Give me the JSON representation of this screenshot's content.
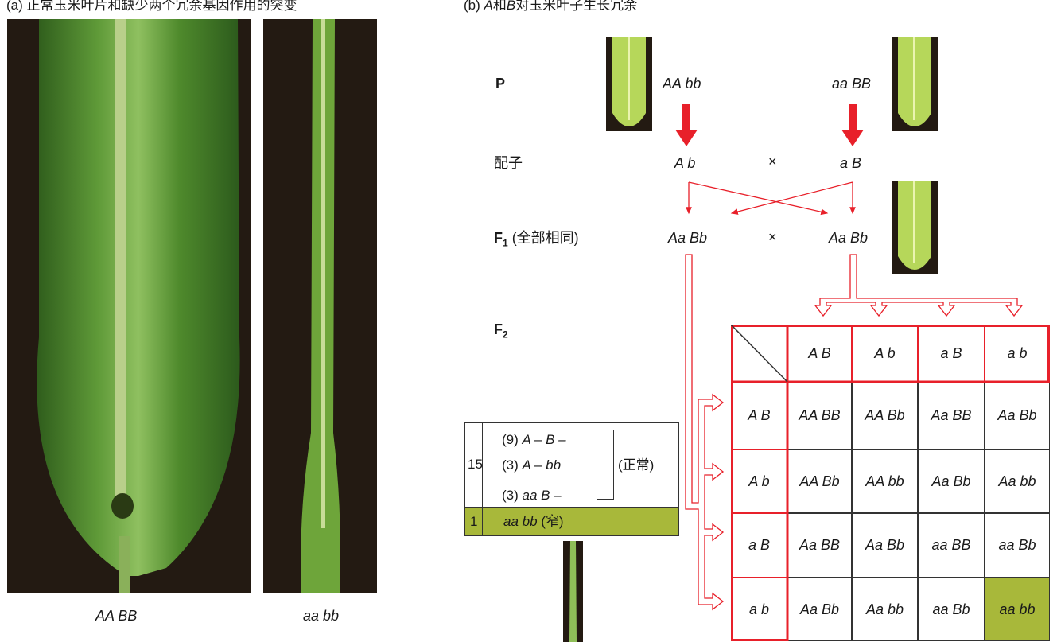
{
  "panel_a": {
    "caption": "(a) 正常玉米叶片和缺少两个冗余基因作用的突变",
    "left_label": "AA BB",
    "right_label": "aa bb"
  },
  "panel_b": {
    "caption_prefix": "(b) ",
    "caption_italic": "A",
    "caption_mid": "和",
    "caption_italic2": "B",
    "caption_rest": "对玉米叶子生长冗余",
    "row_P": "P",
    "row_gamete": "配子",
    "row_F1": "F",
    "row_F1_sub": "1",
    "row_F1_note": " (全部相同)",
    "row_F2": "F",
    "row_F2_sub": "2",
    "parent1": "AA bb",
    "parent2": "aa BB",
    "gamete1": "A b",
    "gamete2": "a B",
    "f1_left": "Aa Bb",
    "f1_right": "Aa Bb",
    "cross_symbol": "×"
  },
  "punnett": {
    "col_headers": [
      "A B",
      "A b",
      "a B",
      "a b"
    ],
    "row_headers": [
      "A B",
      "A b",
      "a B",
      "a b"
    ],
    "cells": [
      [
        "AA BB",
        "AA Bb",
        "Aa BB",
        "Aa Bb"
      ],
      [
        "AA Bb",
        "AA bb",
        "Aa Bb",
        "Aa bb"
      ],
      [
        "Aa BB",
        "Aa Bb",
        "aa BB",
        "aa Bb"
      ],
      [
        "Aa Bb",
        "Aa bb",
        "aa Bb",
        "aa bb"
      ]
    ],
    "highlight_color": "#a8b83a",
    "grid_red": "#e8202a"
  },
  "summary": {
    "normal_count": "15",
    "lines": [
      {
        "ratio": "(9) ",
        "genotype": "A – B –"
      },
      {
        "ratio": "(3) ",
        "genotype": "A – bb"
      },
      {
        "ratio": "(3) ",
        "genotype": "aa B –"
      }
    ],
    "normal_label": "(正常)",
    "narrow_count": "1",
    "narrow_genotype": "aa bb",
    "narrow_label": " (窄)"
  }
}
